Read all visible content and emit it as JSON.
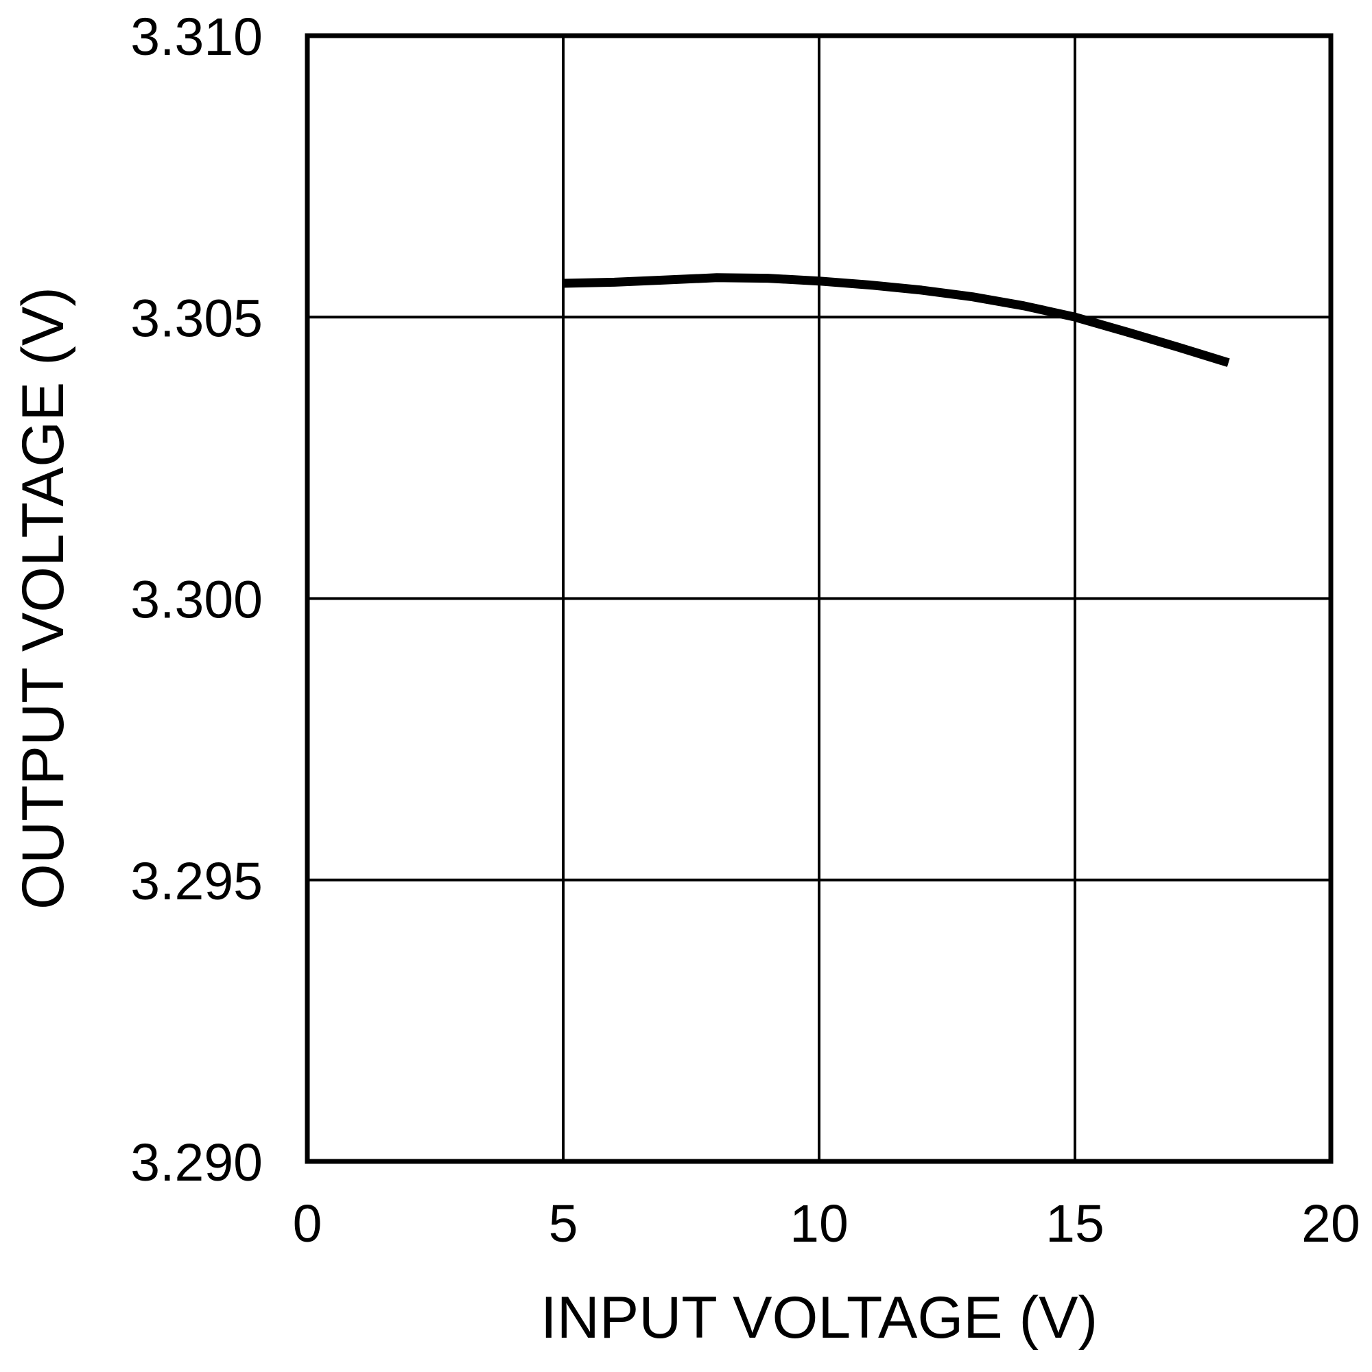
{
  "chart_data": {
    "type": "line",
    "title": "",
    "xlabel": "INPUT VOLTAGE (V)",
    "ylabel": "OUTPUT VOLTAGE (V)",
    "xlim": [
      0,
      20
    ],
    "ylim": [
      3.29,
      3.31
    ],
    "xticks": [
      "0",
      "5",
      "10",
      "15",
      "20"
    ],
    "yticks": [
      "3.290",
      "3.295",
      "3.300",
      "3.305",
      "3.310"
    ],
    "grid": true,
    "series": [
      {
        "color": "#000000",
        "x": [
          5,
          6,
          7,
          8,
          9,
          10,
          11,
          12,
          13,
          14,
          15,
          16,
          17,
          18
        ],
        "y": [
          3.3056,
          3.30562,
          3.30566,
          3.3057,
          3.30569,
          3.30564,
          3.30557,
          3.30548,
          3.30536,
          3.3052,
          3.305,
          3.30474,
          3.30447,
          3.30419
        ]
      }
    ]
  }
}
